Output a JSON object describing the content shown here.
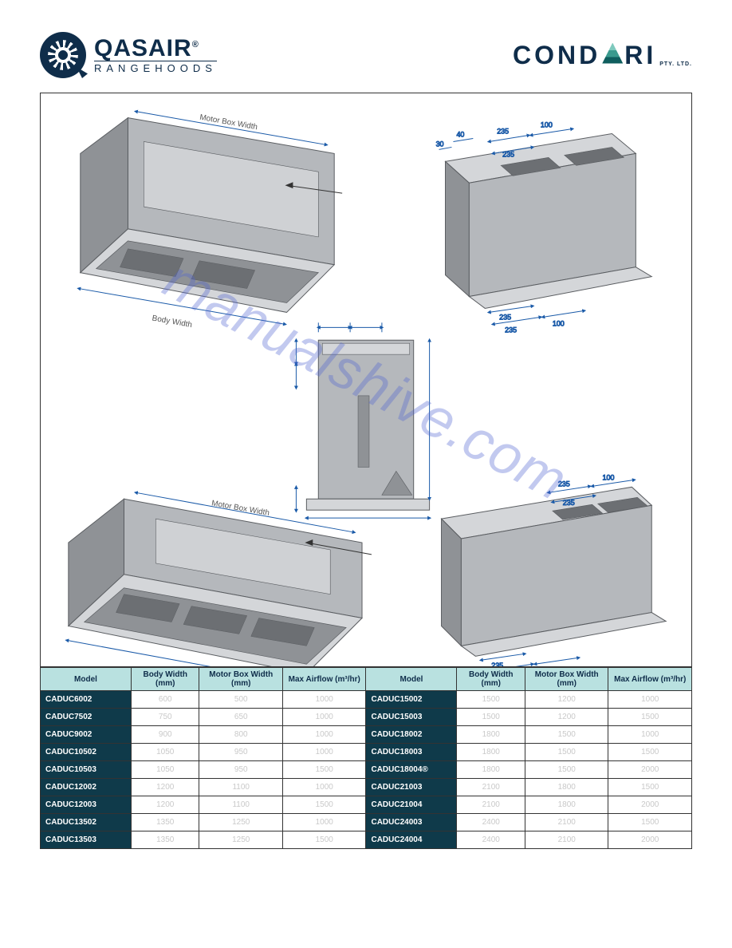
{
  "header": {
    "brand_left": {
      "name": "QASAIR",
      "reg": "®",
      "sub": "RANGEHOODS"
    },
    "brand_right": {
      "part1": "COND",
      "part2": "RI",
      "sub": "PTY. LTD."
    }
  },
  "watermark": "manualshive.com",
  "diagram_labels": {
    "motor_box_width": "Motor Box Width",
    "body_width": "Body Width",
    "dim_235": "235",
    "dim_100": "100",
    "dim_40": "40",
    "dim_30": "30"
  },
  "diagram_style": {
    "panel_fill": "#b5b8bc",
    "panel_dark": "#8f9296",
    "panel_light": "#d4d6d9",
    "edge": "#5a5d61",
    "dim_line": "#1a5aa8",
    "dim_text": "#1a5aa8",
    "label_text": "#555555"
  },
  "table": {
    "headers": [
      "Model",
      "Body Width (mm)",
      "Motor Box Width (mm)",
      "Max Airflow (m³/hr)",
      "Model",
      "Body Width (mm)",
      "Motor Box Width (mm)",
      "Max Airflow (m³/hr)"
    ],
    "rows": [
      {
        "left_model": "CADUC6002",
        "l": [
          "600",
          "500",
          "1000"
        ],
        "right_model": "CADUC15002",
        "r": [
          "1500",
          "1200",
          "1000"
        ]
      },
      {
        "left_model": "CADUC7502",
        "l": [
          "750",
          "650",
          "1000"
        ],
        "right_model": "CADUC15003",
        "r": [
          "1500",
          "1200",
          "1500"
        ]
      },
      {
        "left_model": "CADUC9002",
        "l": [
          "900",
          "800",
          "1000"
        ],
        "right_model": "CADUC18002",
        "r": [
          "1800",
          "1500",
          "1000"
        ]
      },
      {
        "left_model": "CADUC10502",
        "l": [
          "1050",
          "950",
          "1000"
        ],
        "right_model": "CADUC18003",
        "r": [
          "1800",
          "1500",
          "1500"
        ]
      },
      {
        "left_model": "CADUC10503",
        "l": [
          "1050",
          "950",
          "1500"
        ],
        "right_model": "CADUC18004®",
        "r": [
          "1800",
          "1500",
          "2000"
        ]
      },
      {
        "left_model": "CADUC12002",
        "l": [
          "1200",
          "1100",
          "1000"
        ],
        "right_model": "CADUC21003",
        "r": [
          "2100",
          "1800",
          "1500"
        ]
      },
      {
        "left_model": "CADUC12003",
        "l": [
          "1200",
          "1100",
          "1500"
        ],
        "right_model": "CADUC21004",
        "r": [
          "2100",
          "1800",
          "2000"
        ]
      },
      {
        "left_model": "CADUC13502",
        "l": [
          "1350",
          "1250",
          "1000"
        ],
        "right_model": "CADUC24003",
        "r": [
          "2400",
          "2100",
          "1500"
        ]
      },
      {
        "left_model": "CADUC13503",
        "l": [
          "1350",
          "1250",
          "1500"
        ],
        "right_model": "CADUC24004",
        "r": [
          "2400",
          "2100",
          "2000"
        ]
      }
    ]
  }
}
